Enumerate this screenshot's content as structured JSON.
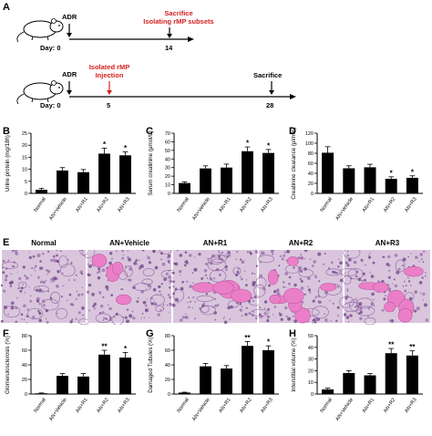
{
  "panels": {
    "A": "A",
    "B": "B",
    "C": "C",
    "D": "D",
    "E": "E",
    "F": "F",
    "G": "G",
    "H": "H"
  },
  "timeline1": {
    "top_label": "ADR",
    "day_label": "Day: 0",
    "event_label_line1": "Sacrifice",
    "event_label_line2": "Isolating rMP subsets",
    "event_day": "14"
  },
  "timeline2": {
    "top_label": "ADR",
    "day_label": "Day: 0",
    "inject_line1": "Isolated rMP",
    "inject_line2": "Injection",
    "inject_day": "5",
    "sacrifice_label": "Sacrifice",
    "sacrifice_day": "28"
  },
  "histology": {
    "labels": [
      "Normal",
      "AN+Vehicle",
      "AN+R1",
      "AN+R2",
      "AN+R3"
    ]
  },
  "colors": {
    "bar": "#000000",
    "timeline_red": "#d42020",
    "stain_pink": "#e97cc4",
    "stain_purple": "#7a4a8e",
    "tissue_bg": "#d8c7df"
  },
  "chart_data": [
    {
      "id": "B",
      "type": "bar",
      "categories": [
        "Normal",
        "AN+Vehicle",
        "AN+R1",
        "AN+R2",
        "AN+R3"
      ],
      "values": [
        1.5,
        9.5,
        8.8,
        16.5,
        15.8
      ],
      "errors": [
        0.6,
        1.2,
        1.1,
        2.3,
        1.4
      ],
      "sig": [
        "",
        "",
        "",
        "*",
        "*"
      ],
      "ylabel": "Urine protein (mg/18h)",
      "ylim": [
        0,
        25
      ],
      "yticks": [
        0,
        5,
        10,
        15,
        20,
        25
      ]
    },
    {
      "id": "C",
      "type": "bar",
      "categories": [
        "Normal",
        "AN+Vehicle",
        "AN+R1",
        "AN+R2",
        "AN+R3"
      ],
      "values": [
        12,
        29,
        30,
        49,
        47
      ],
      "errors": [
        1.5,
        3,
        4,
        5,
        4
      ],
      "sig": [
        "",
        "",
        "",
        "*",
        "*"
      ],
      "ylabel": "Serum creatinine (μmol/L)",
      "ylim": [
        0,
        70
      ],
      "yticks": [
        0,
        10,
        20,
        30,
        40,
        50,
        60,
        70
      ]
    },
    {
      "id": "D",
      "type": "bar",
      "categories": [
        "Normal",
        "AN+Vehicle",
        "AN+R1",
        "AN+R2",
        "AN+R3"
      ],
      "values": [
        81,
        50,
        52,
        29,
        31
      ],
      "errors": [
        12,
        5,
        6,
        4,
        4
      ],
      "sig": [
        "",
        "",
        "",
        "*",
        "*"
      ],
      "ylabel": "Creatinine clearance (μl/min)",
      "ylim": [
        0,
        120
      ],
      "yticks": [
        0,
        20,
        40,
        60,
        80,
        100,
        120
      ]
    },
    {
      "id": "F",
      "type": "bar",
      "categories": [
        "Normal",
        "AN+Vehicle",
        "AN+R1",
        "AN+R2",
        "AN+R3"
      ],
      "values": [
        1,
        25,
        24,
        54,
        50
      ],
      "errors": [
        0.5,
        3,
        4,
        6,
        7
      ],
      "sig": [
        "",
        "",
        "",
        "**",
        "*"
      ],
      "ylabel": "Glomerulosclerosis (%)",
      "ylim": [
        0,
        80
      ],
      "yticks": [
        0,
        20,
        40,
        60,
        80
      ]
    },
    {
      "id": "G",
      "type": "bar",
      "categories": [
        "Normal",
        "AN+Vehicle",
        "AN+R1",
        "AN+R2",
        "AN+R3"
      ],
      "values": [
        2,
        38,
        35,
        66,
        60
      ],
      "errors": [
        0.5,
        4,
        4,
        6,
        6
      ],
      "sig": [
        "",
        "",
        "",
        "**",
        "*"
      ],
      "ylabel": "Damaged Tubules (%)",
      "ylim": [
        0,
        80
      ],
      "yticks": [
        0,
        20,
        40,
        60,
        80
      ]
    },
    {
      "id": "H",
      "type": "bar",
      "categories": [
        "Normal",
        "AN+Vehicle",
        "AN+R1",
        "AN+R2",
        "AN+R3"
      ],
      "values": [
        4,
        18,
        16,
        35,
        33
      ],
      "errors": [
        1,
        2,
        1.5,
        4,
        4
      ],
      "sig": [
        "",
        "",
        "",
        "**",
        "**"
      ],
      "ylabel": "Interstitial volume (%)",
      "ylim": [
        0,
        50
      ],
      "yticks": [
        0,
        10,
        20,
        30,
        40,
        50
      ]
    }
  ]
}
